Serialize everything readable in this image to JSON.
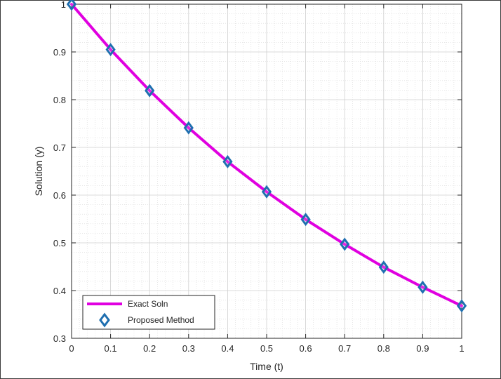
{
  "chart_data": {
    "type": "line",
    "title": "",
    "xlabel": "Time (t)",
    "ylabel": "Solution (y)",
    "xlim": [
      0,
      1
    ],
    "ylim": [
      0.3,
      1
    ],
    "xticks": [
      "0",
      "0.1",
      "0.2",
      "0.3",
      "0.4",
      "0.5",
      "0.6",
      "0.7",
      "0.8",
      "0.9",
      "1"
    ],
    "yticks": [
      "0.3",
      "0.4",
      "0.5",
      "0.6",
      "0.7",
      "0.8",
      "0.9",
      "1"
    ],
    "grid": true,
    "minor_grid": true,
    "legend_position": "bottom-left",
    "series": [
      {
        "name": "Exact Soln",
        "style": "line",
        "color": "#e000e0",
        "x": [
          0,
          0.1,
          0.2,
          0.3,
          0.4,
          0.5,
          0.6,
          0.7,
          0.8,
          0.9,
          1
        ],
        "y": [
          1.0,
          0.905,
          0.819,
          0.741,
          0.67,
          0.607,
          0.549,
          0.497,
          0.449,
          0.407,
          0.368
        ]
      },
      {
        "name": "Proposed Method",
        "style": "marker",
        "marker": "diamond",
        "color": "#1f6fb0",
        "x": [
          0,
          0.1,
          0.2,
          0.3,
          0.4,
          0.5,
          0.6,
          0.7,
          0.8,
          0.9,
          1
        ],
        "y": [
          1.0,
          0.905,
          0.819,
          0.741,
          0.67,
          0.607,
          0.549,
          0.497,
          0.449,
          0.407,
          0.368
        ]
      }
    ]
  }
}
